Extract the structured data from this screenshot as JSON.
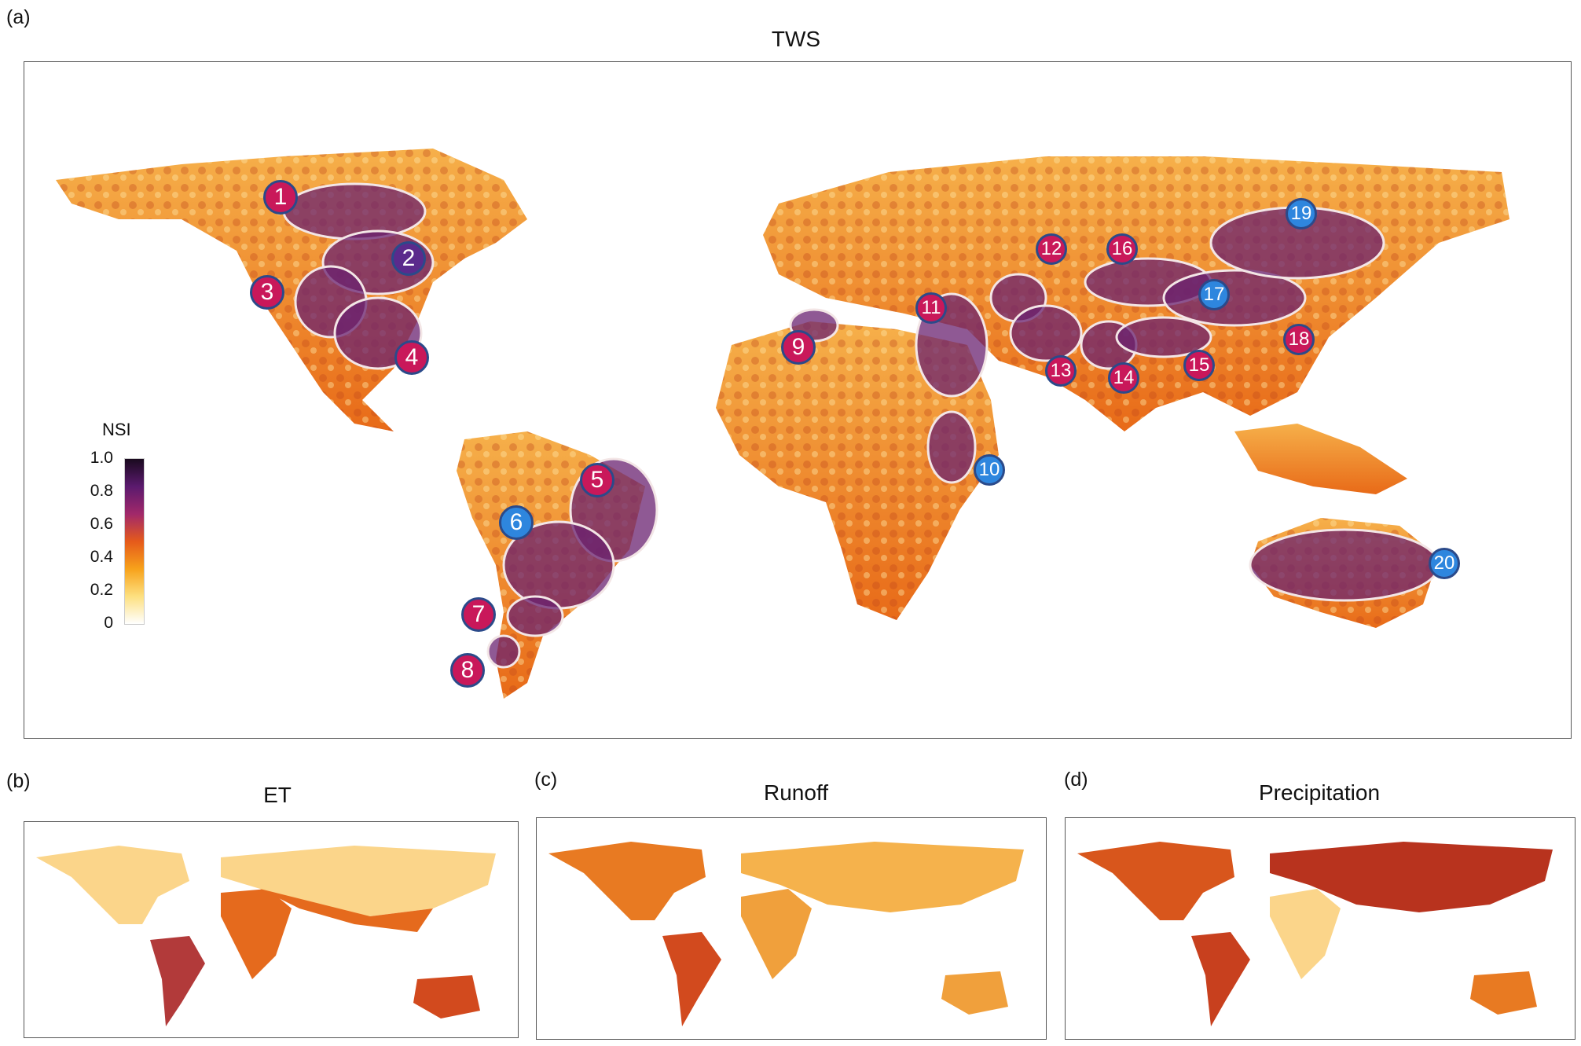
{
  "panels": {
    "a": {
      "letter": "(a)",
      "title": "TWS"
    },
    "b": {
      "letter": "(b)",
      "title": "ET"
    },
    "c": {
      "letter": "(c)",
      "title": "Runoff"
    },
    "d": {
      "letter": "(d)",
      "title": "Precipitation"
    }
  },
  "colorbar": {
    "label": "NSI",
    "ticks": [
      "1.0",
      "0.8",
      "0.6",
      "0.4",
      "0.2",
      "0"
    ],
    "colors": [
      "#1a0a1f",
      "#5b1a6e",
      "#a1286a",
      "#e55a1b",
      "#f7a21b",
      "#fde080",
      "#ffffff"
    ]
  },
  "regions": [
    {
      "label": "1",
      "type": "red"
    },
    {
      "label": "2",
      "type": "purple"
    },
    {
      "label": "3",
      "type": "red"
    },
    {
      "label": "4",
      "type": "red"
    },
    {
      "label": "5",
      "type": "red"
    },
    {
      "label": "6",
      "type": "blue"
    },
    {
      "label": "7",
      "type": "red"
    },
    {
      "label": "8",
      "type": "red"
    },
    {
      "label": "9",
      "type": "red"
    },
    {
      "label": "10",
      "type": "blue"
    },
    {
      "label": "11",
      "type": "red"
    },
    {
      "label": "12",
      "type": "red"
    },
    {
      "label": "13",
      "type": "red"
    },
    {
      "label": "14",
      "type": "red"
    },
    {
      "label": "15",
      "type": "red"
    },
    {
      "label": "16",
      "type": "red"
    },
    {
      "label": "17",
      "type": "blue"
    },
    {
      "label": "18",
      "type": "red"
    },
    {
      "label": "19",
      "type": "blue"
    },
    {
      "label": "20",
      "type": "blue"
    }
  ],
  "marker_colors": {
    "red": "#c9185a",
    "purple": "#5b2a8c",
    "blue": "#2e86de"
  }
}
